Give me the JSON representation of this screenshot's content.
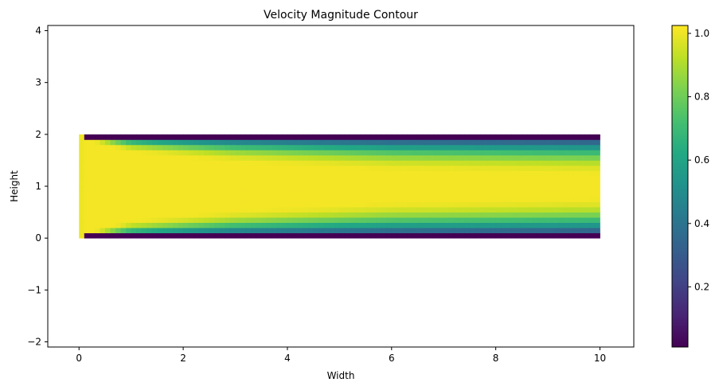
{
  "chart_data": {
    "type": "heatmap",
    "title": "Velocity Magnitude Contour",
    "xlabel": "Width",
    "ylabel": "Height",
    "xlim": [
      -0.6,
      10.65
    ],
    "ylim": [
      -2.1,
      4.1
    ],
    "xticks": [
      0,
      2,
      4,
      6,
      8,
      10
    ],
    "yticks": [
      -2,
      -1,
      0,
      1,
      2,
      3,
      4
    ],
    "colorbar": {
      "ticks": [
        0.2,
        0.4,
        0.6,
        0.8,
        1.0
      ],
      "tick_labels": [
        "0.2",
        "0.4",
        "0.6",
        "0.8",
        "1.0"
      ],
      "vmin": 0.01,
      "vmax": 1.025,
      "colormap": "viridis"
    },
    "grid": false,
    "field": {
      "x_extent": [
        0,
        10
      ],
      "y_extent": [
        0,
        2
      ],
      "nx": 100,
      "ny": 20,
      "inlet_x": 0.1,
      "inlet_value": 1.0,
      "wall_value": 0.01,
      "core_value": 1.01,
      "boundary_layer_thickness": {
        "x": [
          0.1,
          1,
          3,
          6,
          10
        ],
        "delta": [
          0.1,
          0.35,
          0.55,
          0.72,
          0.8
        ]
      },
      "note_free": true
    }
  }
}
